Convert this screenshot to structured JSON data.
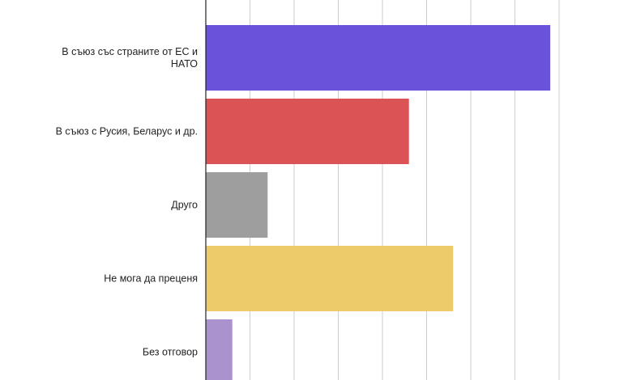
{
  "chart_data": {
    "type": "bar",
    "orientation": "horizontal",
    "title": "",
    "xlabel": "",
    "ylabel": "",
    "categories": [
      [
        "В съюз със страните от ЕС и",
        "НАТО"
      ],
      [
        "В съюз с Русия, Беларус и др."
      ],
      [
        "Друго"
      ],
      [
        "Не мога да преценя"
      ],
      [
        "Без отговор"
      ]
    ],
    "values": [
      39,
      23,
      7,
      28,
      3
    ],
    "colors": [
      "#6a52da",
      "#db5355",
      "#9e9e9e",
      "#eecb6a",
      "#a992ce"
    ],
    "xlim": [
      0,
      40
    ],
    "grid": true,
    "grid_color": "#cccccc",
    "legend": "none"
  }
}
